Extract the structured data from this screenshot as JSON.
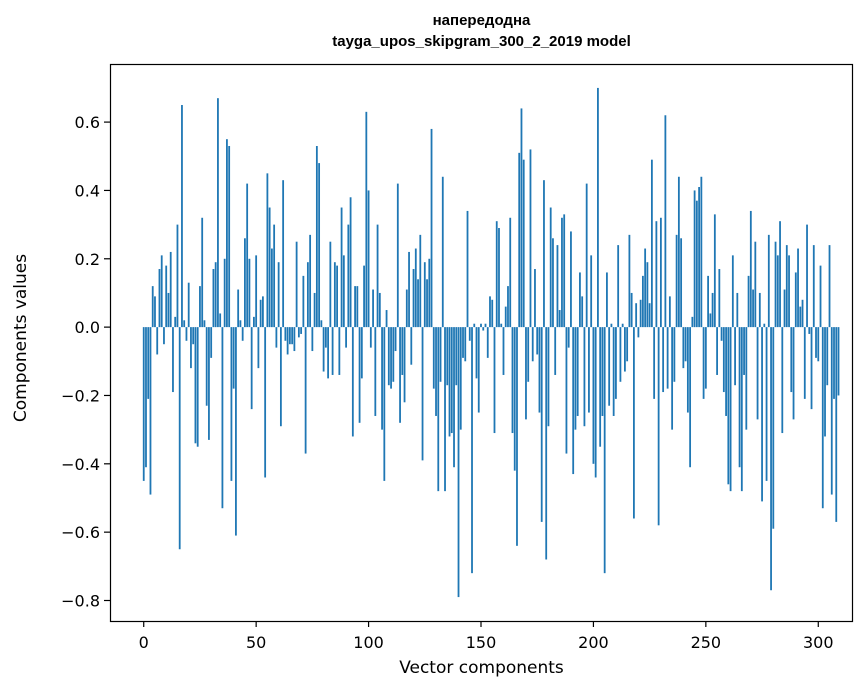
{
  "chart_data": {
    "type": "bar",
    "title": "напередодна",
    "subtitle": "tayga_upos_skipgram_300_2_2019 model",
    "xlabel": "Vector components",
    "ylabel": "Components values",
    "xlim": [
      -15,
      315
    ],
    "ylim": [
      -0.86,
      0.77
    ],
    "x_ticks": [
      0,
      50,
      100,
      150,
      200,
      250,
      300
    ],
    "y_ticks": [
      -0.8,
      -0.6,
      -0.4,
      -0.2,
      0.0,
      0.2,
      0.4,
      0.6
    ],
    "y_tick_labels": [
      "−0.8",
      "−0.6",
      "−0.4",
      "−0.2",
      "0.0",
      "0.2",
      "0.4",
      "0.6"
    ],
    "bar_color": "#1f77b4",
    "grid": false,
    "legend": "none",
    "values": [
      -0.45,
      -0.41,
      -0.21,
      -0.49,
      0.12,
      0.09,
      -0.08,
      0.17,
      0.21,
      -0.05,
      0.18,
      0.1,
      0.22,
      -0.19,
      0.03,
      0.3,
      -0.65,
      0.65,
      0.02,
      -0.04,
      0.13,
      -0.12,
      -0.05,
      -0.34,
      -0.35,
      0.12,
      0.32,
      0.02,
      -0.23,
      -0.33,
      -0.09,
      0.17,
      0.19,
      0.67,
      0.04,
      -0.53,
      0.2,
      0.55,
      0.53,
      -0.45,
      -0.18,
      -0.61,
      0.11,
      0.02,
      -0.04,
      0.26,
      0.42,
      0.2,
      -0.24,
      0.03,
      0.21,
      -0.12,
      0.08,
      0.09,
      -0.44,
      0.45,
      0.35,
      0.23,
      0.3,
      -0.06,
      0.19,
      -0.29,
      0.43,
      -0.04,
      -0.08,
      -0.05,
      -0.05,
      -0.07,
      0.25,
      -0.03,
      -0.02,
      0.15,
      -0.37,
      0.19,
      0.27,
      -0.07,
      0.1,
      0.53,
      0.48,
      0.02,
      -0.13,
      -0.06,
      -0.15,
      0.25,
      -0.14,
      0.19,
      0.18,
      -0.14,
      0.35,
      0.21,
      -0.06,
      0.3,
      0.38,
      -0.32,
      0.12,
      0.12,
      -0.28,
      -0.15,
      0.18,
      0.63,
      0.4,
      -0.06,
      0.11,
      -0.26,
      0.3,
      0.1,
      -0.3,
      -0.45,
      0.05,
      -0.17,
      -0.18,
      -0.16,
      -0.07,
      0.42,
      -0.28,
      -0.14,
      -0.22,
      0.11,
      0.22,
      -0.11,
      0.17,
      0.23,
      0.14,
      0.27,
      -0.39,
      0.19,
      0.14,
      0.2,
      0.58,
      -0.18,
      -0.26,
      -0.48,
      -0.16,
      0.44,
      -0.48,
      -0.17,
      -0.32,
      -0.31,
      -0.41,
      -0.17,
      -0.79,
      -0.3,
      -0.09,
      -0.1,
      0.34,
      -0.04,
      -0.72,
      0.01,
      -0.15,
      -0.25,
      0.01,
      -0.01,
      0.01,
      -0.09,
      0.09,
      0.08,
      -0.31,
      0.31,
      0.29,
      0.01,
      -0.14,
      0.06,
      0.12,
      0.32,
      -0.31,
      -0.42,
      -0.64,
      0.51,
      0.64,
      0.49,
      -0.27,
      -0.16,
      0.52,
      -0.1,
      0.17,
      -0.08,
      -0.25,
      -0.57,
      0.43,
      -0.68,
      -0.29,
      0.35,
      0.26,
      -0.14,
      0.24,
      0.05,
      0.32,
      0.33,
      -0.37,
      -0.06,
      0.28,
      -0.43,
      -0.3,
      -0.26,
      0.16,
      0.09,
      -0.29,
      0.42,
      -0.25,
      0.21,
      -0.4,
      -0.44,
      0.7,
      -0.35,
      -0.26,
      -0.72,
      0.16,
      -0.23,
      0.01,
      -0.26,
      -0.21,
      0.24,
      -0.16,
      0.01,
      -0.13,
      -0.1,
      0.27,
      0.1,
      -0.56,
      0.07,
      -0.03,
      0.08,
      0.15,
      0.23,
      0.19,
      0.07,
      0.49,
      -0.21,
      0.31,
      -0.58,
      0.32,
      -0.19,
      0.62,
      -0.18,
      0.09,
      -0.3,
      -0.16,
      0.27,
      0.44,
      0.26,
      -0.12,
      -0.1,
      -0.25,
      -0.41,
      0.03,
      0.4,
      0.37,
      0.41,
      0.44,
      -0.21,
      -0.18,
      0.15,
      0.04,
      0.1,
      0.33,
      -0.14,
      0.17,
      -0.04,
      -0.19,
      -0.26,
      -0.46,
      -0.48,
      0.21,
      -0.17,
      0.1,
      -0.41,
      -0.48,
      -0.14,
      -0.3,
      0.15,
      0.34,
      0.11,
      0.25,
      -0.27,
      0.1,
      -0.51,
      0.01,
      -0.45,
      0.27,
      -0.77,
      -0.59,
      0.25,
      0.21,
      0.31,
      -0.31,
      0.11,
      0.24,
      0.21,
      -0.19,
      -0.27,
      0.16,
      0.23,
      0.06,
      0.08,
      -0.21,
      0.3,
      -0.02,
      -0.24,
      0.24,
      -0.09,
      -0.1,
      0.18,
      -0.53,
      -0.32,
      -0.17,
      0.24,
      -0.49,
      -0.21,
      -0.57,
      -0.2
    ]
  }
}
